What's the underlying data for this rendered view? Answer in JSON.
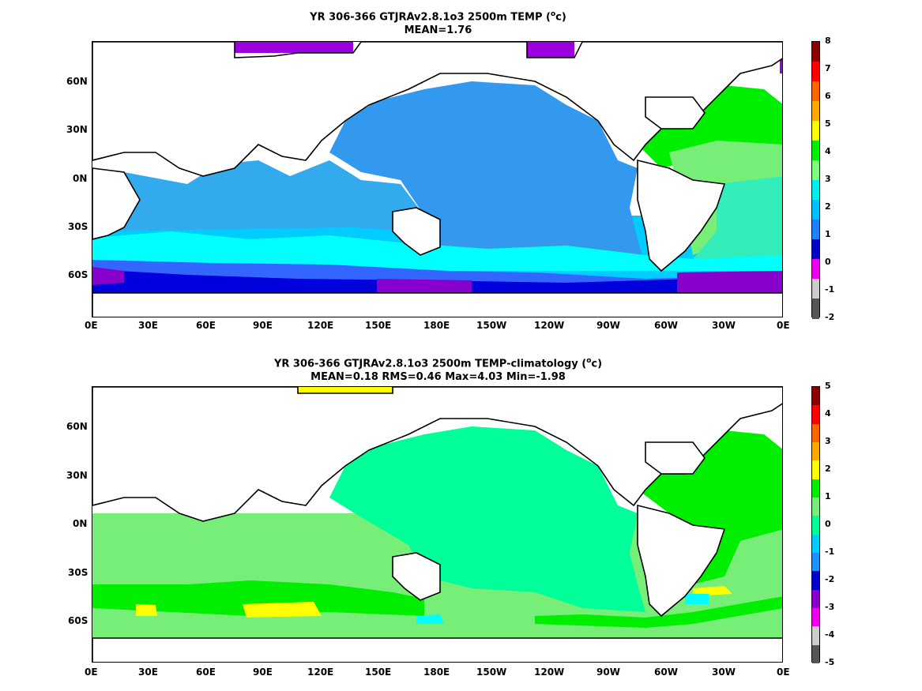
{
  "panels": [
    {
      "title_line1": "YR 306-366 GTJRAv2.8.1o3 2500m TEMP (",
      "title_sup": "o",
      "title_tail": "c)",
      "title_line2": "MEAN=1.76",
      "colorbar_ticks": [
        "8",
        "7",
        "6",
        "5",
        "4",
        "3",
        "2",
        "1",
        "0",
        "-1",
        "-2"
      ],
      "colorbar_colors": [
        "#8b0000",
        "#ff0000",
        "#ff6600",
        "#ffaa00",
        "#ffff00",
        "#00ee00",
        "#7fff7f",
        "#00eeee",
        "#00bfff",
        "#1e7fff",
        "#0000cc",
        "#ee00ee",
        "#cccccc",
        "#555555"
      ],
      "ocean_colors": {
        "pacific": "#3399ee",
        "indian": "#33aaee",
        "southern_band1": "#00ffff",
        "southern_band2": "#00ccff",
        "southern_band3": "#3366ff",
        "antarctic": "#0000dd",
        "antarctic_deep": "#8800cc",
        "atlantic_north": "#00ee00",
        "atlantic_mid": "#77ee77",
        "atlantic_south": "#33eebb",
        "arctic": "#9900dd"
      }
    },
    {
      "title_line1": "YR 306-366 GTJRAv2.8.1o3 2500m TEMP-climatology (",
      "title_sup": "o",
      "title_tail": "c)",
      "title_line2": "MEAN=0.18   RMS=0.46   Max=4.03   Min=-1.98",
      "colorbar_ticks": [
        "5",
        "4",
        "3",
        "2",
        "1",
        "0",
        "-1",
        "-2",
        "-3",
        "-4",
        "-5"
      ],
      "colorbar_colors": [
        "#8b0000",
        "#ff0000",
        "#ff6600",
        "#ffaa00",
        "#ffff00",
        "#00ee00",
        "#77ee77",
        "#00ff99",
        "#00ccff",
        "#1e90ff",
        "#0000cc",
        "#8800cc",
        "#ee00ee",
        "#cccccc",
        "#555555"
      ],
      "ocean_colors": {
        "pacific": "#00ff99",
        "indian": "#77ee77",
        "southern_band1": "#77ee77",
        "southern_band2": "#00ee00",
        "yellow_patch": "#ffff00",
        "atlantic_north": "#00ee00",
        "atlantic_mid": "#00ee00",
        "atlantic_south": "#77ee77",
        "cyan_patch": "#00ffff",
        "arctic": "#ffff00"
      }
    }
  ],
  "lat_labels": [
    "60N",
    "30N",
    "0N",
    "30S",
    "60S"
  ],
  "lon_labels": [
    "0E",
    "30E",
    "60E",
    "90E",
    "120E",
    "150E",
    "180E",
    "150W",
    "120W",
    "90W",
    "60W",
    "30W",
    "0E"
  ]
}
